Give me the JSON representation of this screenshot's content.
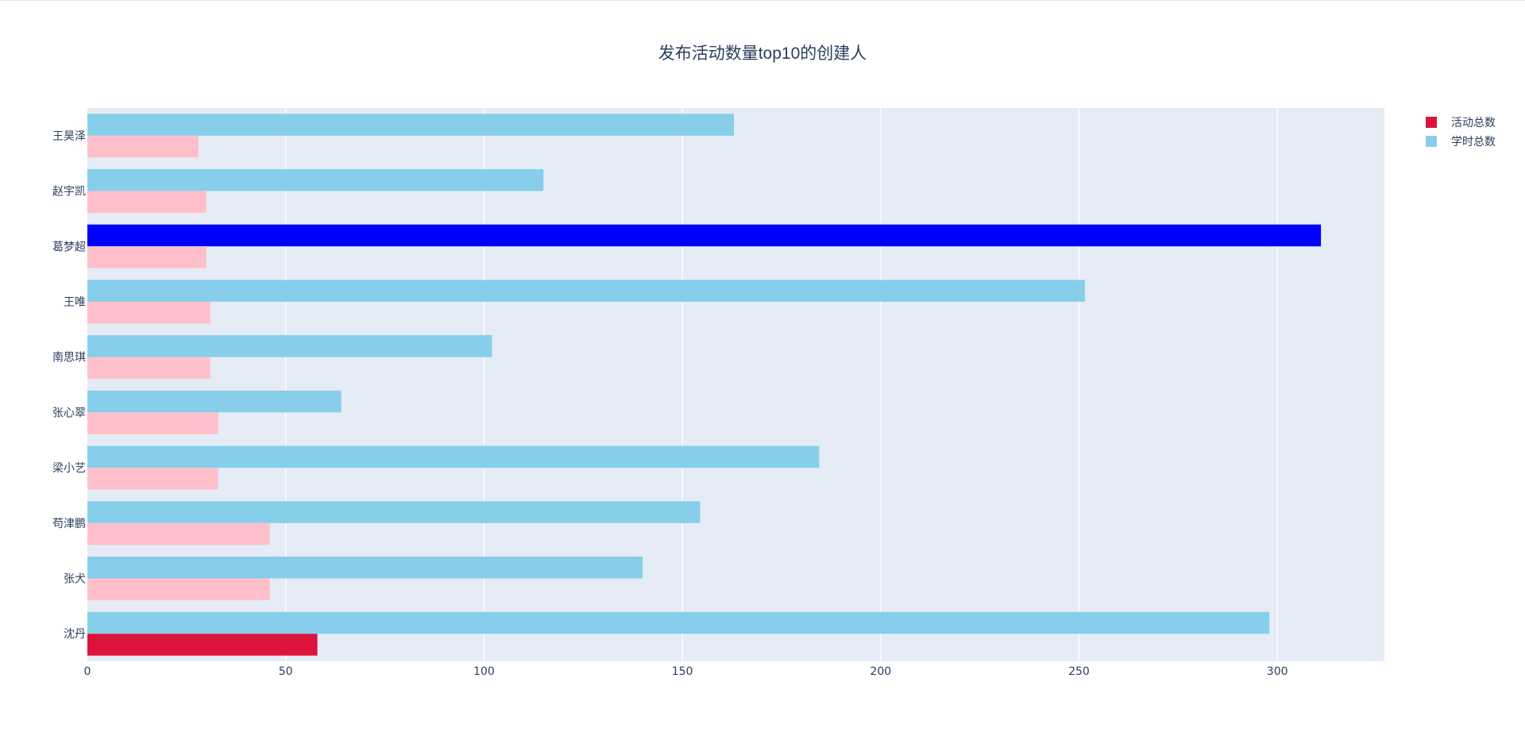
{
  "chart_data": {
    "type": "bar",
    "orientation": "horizontal",
    "title": "发布活动数量top10的创建人",
    "categories": [
      "沈丹",
      "张犬",
      "苟津鹏",
      "梁小艺",
      "张心翠",
      "南思琪",
      "王唯",
      "葛梦超",
      "赵宇凯",
      "王昊泽"
    ],
    "series": [
      {
        "name": "活动总数",
        "color": "#dc143c",
        "default_bar_color": "#ffc0cb",
        "highlight_category": "沈丹",
        "values": [
          58,
          46,
          46,
          33,
          33,
          31,
          31,
          30,
          30,
          28
        ]
      },
      {
        "name": "学时总数",
        "color": "#87ceeb",
        "highlight_category": "葛梦超",
        "highlight_color": "#0000ff",
        "values": [
          298,
          140,
          154.5,
          184.5,
          64,
          102,
          251.5,
          311,
          115,
          163
        ]
      }
    ],
    "xlim": [
      0,
      327
    ],
    "xticks": [
      0,
      50,
      100,
      150,
      200,
      250,
      300
    ],
    "grid": true,
    "legend_position": "top-right",
    "plot_background": "#e5ecf6"
  }
}
